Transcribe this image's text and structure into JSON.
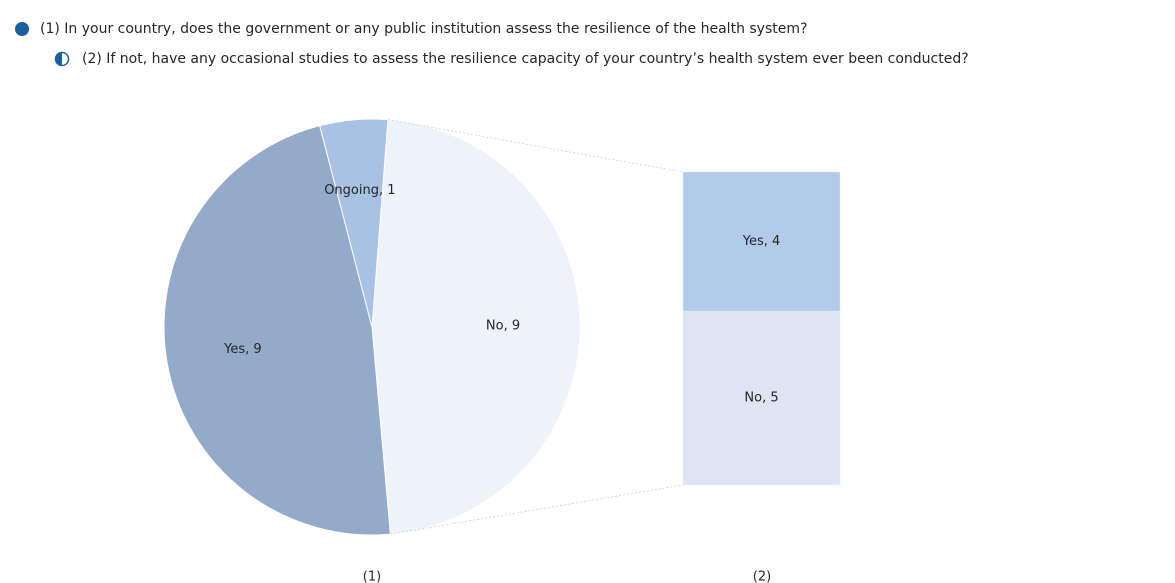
{
  "chart_data": [
    {
      "type": "pie",
      "title": "(1) In your country, does the government or any public institution assess the resilience of the health system?",
      "caption": "(1)",
      "legend_color": "#1f5fa0",
      "categories": [
        "No",
        "Yes",
        "Ongoing"
      ],
      "values": [
        9,
        9,
        1
      ],
      "value_labels": [
        "No, 9",
        "Yes, 9",
        "Ongoing, 1"
      ],
      "colors": [
        "#eef2f9",
        "#93aacb",
        "#a9c1e2"
      ]
    },
    {
      "type": "bar",
      "title": "(2) If not, have any occasional studies to assess the resilience capacity of your country’s health system ever been conducted?",
      "caption": "(2)",
      "legend_color": "#1f5fa0",
      "categories": [
        "Yes",
        "No"
      ],
      "values": [
        4,
        5
      ],
      "value_labels": [
        "Yes, 4",
        "No, 5"
      ],
      "colors": [
        "#b3cbea",
        "#dce5f2"
      ]
    }
  ]
}
